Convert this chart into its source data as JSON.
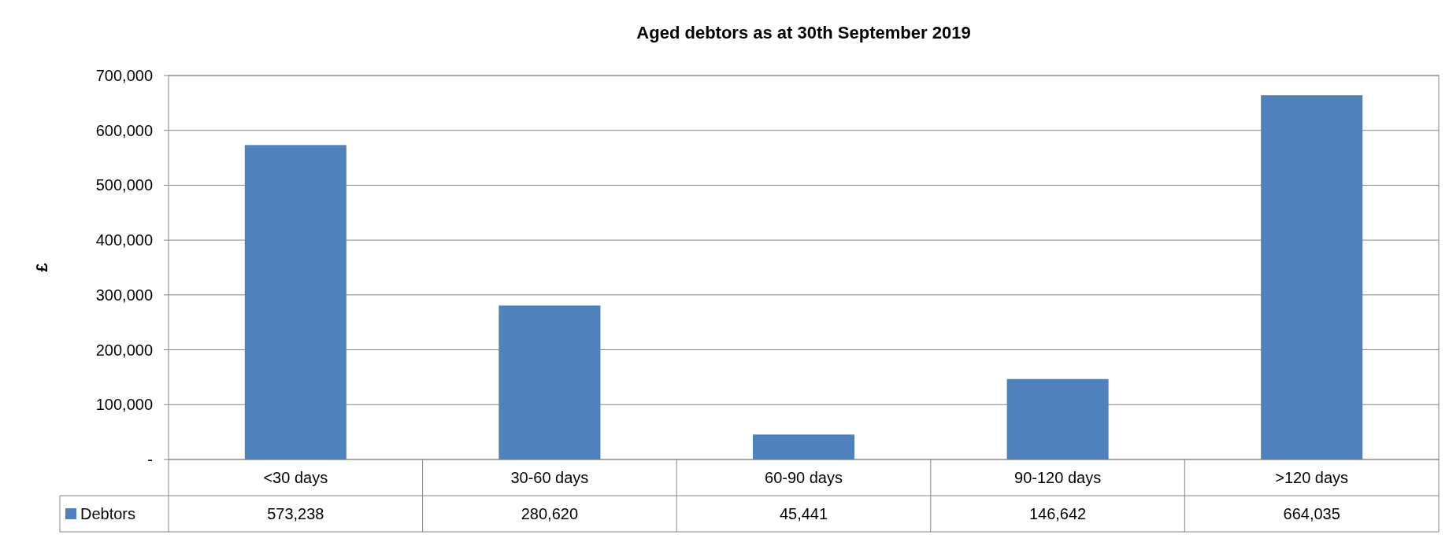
{
  "chart_data": {
    "type": "bar",
    "title": "Aged debtors as at 30th September 2019",
    "ylabel": "£",
    "categories": [
      "<30 days",
      "30-60 days",
      "60-90 days",
      "90-120 days",
      ">120 days"
    ],
    "series": [
      {
        "name": "Debtors",
        "color": "#4f81bd",
        "values": [
          573238,
          280620,
          45441,
          146642,
          664035
        ],
        "value_labels": [
          "573,238",
          "280,620",
          "45,441",
          "146,642",
          "664,035"
        ]
      }
    ],
    "ylim": [
      0,
      700000
    ],
    "yticks": [
      {
        "value": 0,
        "label": "-"
      },
      {
        "value": 100000,
        "label": "100,000"
      },
      {
        "value": 200000,
        "label": "200,000"
      },
      {
        "value": 300000,
        "label": "300,000"
      },
      {
        "value": 400000,
        "label": "400,000"
      },
      {
        "value": 500000,
        "label": "500,000"
      },
      {
        "value": 600000,
        "label": "600,000"
      },
      {
        "value": 700000,
        "label": "700,000"
      }
    ],
    "grid": "y",
    "legend": "bottom left"
  }
}
